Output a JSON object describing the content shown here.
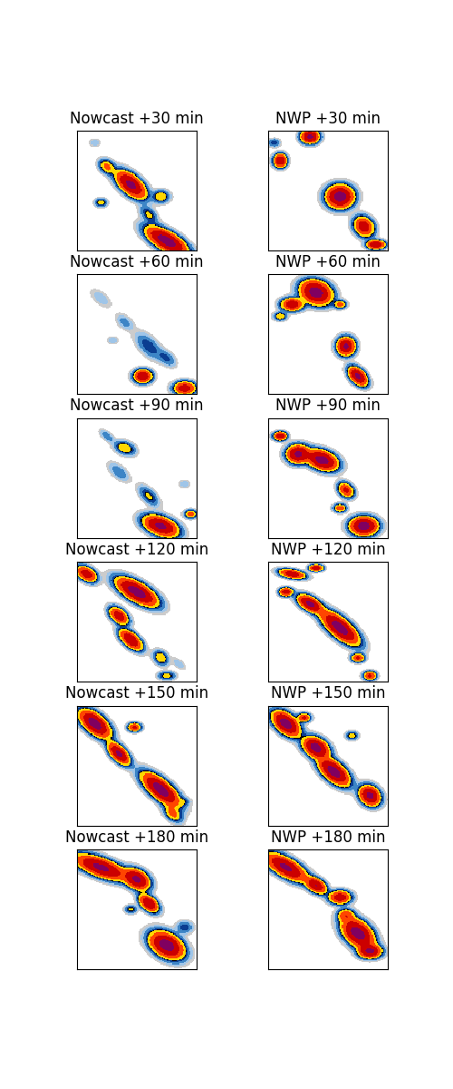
{
  "chart_data": {
    "type": "heatmap",
    "tick_labels": false,
    "xlim": [
      0,
      100
    ],
    "ylim": [
      0,
      100
    ],
    "levels": [
      0.2,
      0.5,
      1,
      2,
      3,
      3.4,
      6,
      12,
      25,
      200
    ],
    "colors": [
      "#cccccc",
      "#9fc5e8",
      "#3d85c6",
      "#0b3d91",
      "#000000",
      "#ffd700",
      "#ff4500",
      "#cc0000",
      "#800060"
    ],
    "panels": [
      {
        "title": "Nowcast +30 min",
        "cells": [
          {
            "x": 25,
            "y": 70,
            "sx": 4,
            "sy": 3,
            "angle": -40,
            "peak": 8
          },
          {
            "x": 45,
            "y": 55,
            "sx": 8,
            "sy": 4,
            "angle": -40,
            "peak": 30
          },
          {
            "x": 70,
            "y": 45,
            "sx": 4,
            "sy": 3,
            "angle": 0,
            "peak": 6
          },
          {
            "x": 75,
            "y": 8,
            "sx": 10,
            "sy": 4,
            "angle": -30,
            "peak": 35
          },
          {
            "x": 20,
            "y": 40,
            "sx": 3,
            "sy": 2,
            "angle": 0,
            "peak": 5
          },
          {
            "x": 60,
            "y": 30,
            "sx": 5,
            "sy": 3,
            "angle": -45,
            "peak": 4
          },
          {
            "x": 15,
            "y": 90,
            "sx": 3,
            "sy": 2,
            "angle": 0,
            "peak": 1
          }
        ]
      },
      {
        "title": "NWP +30 min",
        "cells": [
          {
            "x": 35,
            "y": 95,
            "sx": 4,
            "sy": 3,
            "angle": 0,
            "peak": 30
          },
          {
            "x": 10,
            "y": 75,
            "sx": 3,
            "sy": 3,
            "angle": 0,
            "peak": 25
          },
          {
            "x": 60,
            "y": 45,
            "sx": 6,
            "sy": 5,
            "angle": 0,
            "peak": 35
          },
          {
            "x": 80,
            "y": 20,
            "sx": 5,
            "sy": 4,
            "angle": -45,
            "peak": 20
          },
          {
            "x": 90,
            "y": 5,
            "sx": 4,
            "sy": 2,
            "angle": 0,
            "peak": 25
          },
          {
            "x": 5,
            "y": 90,
            "sx": 3,
            "sy": 2,
            "angle": 0,
            "peak": 3
          }
        ]
      },
      {
        "title": "Nowcast +60 min",
        "cells": [
          {
            "x": 20,
            "y": 80,
            "sx": 6,
            "sy": 3,
            "angle": -40,
            "peak": 1
          },
          {
            "x": 40,
            "y": 60,
            "sx": 5,
            "sy": 3,
            "angle": -40,
            "peak": 1.5
          },
          {
            "x": 60,
            "y": 40,
            "sx": 8,
            "sy": 4,
            "angle": -45,
            "peak": 3
          },
          {
            "x": 55,
            "y": 15,
            "sx": 4,
            "sy": 3,
            "angle": 0,
            "peak": 25
          },
          {
            "x": 90,
            "y": 5,
            "sx": 5,
            "sy": 3,
            "angle": 0,
            "peak": 20
          },
          {
            "x": 75,
            "y": 30,
            "sx": 5,
            "sy": 3,
            "angle": -40,
            "peak": 2.5
          },
          {
            "x": 30,
            "y": 45,
            "sx": 3,
            "sy": 2,
            "angle": 0,
            "peak": 1
          }
        ]
      },
      {
        "title": "NWP +60 min",
        "cells": [
          {
            "x": 40,
            "y": 85,
            "sx": 7,
            "sy": 5,
            "angle": -20,
            "peak": 35
          },
          {
            "x": 20,
            "y": 75,
            "sx": 5,
            "sy": 3,
            "angle": 0,
            "peak": 20
          },
          {
            "x": 60,
            "y": 75,
            "sx": 3,
            "sy": 2,
            "angle": 0,
            "peak": 8
          },
          {
            "x": 65,
            "y": 40,
            "sx": 4,
            "sy": 4,
            "angle": 0,
            "peak": 30
          },
          {
            "x": 75,
            "y": 15,
            "sx": 5,
            "sy": 3,
            "angle": -45,
            "peak": 30
          },
          {
            "x": 10,
            "y": 65,
            "sx": 3,
            "sy": 2,
            "angle": 0,
            "peak": 6
          }
        ]
      },
      {
        "title": "Nowcast +90 min",
        "cells": [
          {
            "x": 25,
            "y": 85,
            "sx": 4,
            "sy": 2,
            "angle": -40,
            "peak": 2
          },
          {
            "x": 40,
            "y": 75,
            "sx": 5,
            "sy": 3,
            "angle": -20,
            "peak": 6
          },
          {
            "x": 35,
            "y": 55,
            "sx": 6,
            "sy": 3,
            "angle": -40,
            "peak": 2
          },
          {
            "x": 60,
            "y": 35,
            "sx": 6,
            "sy": 3,
            "angle": -45,
            "peak": 4
          },
          {
            "x": 70,
            "y": 10,
            "sx": 8,
            "sy": 4,
            "angle": -20,
            "peak": 30
          },
          {
            "x": 95,
            "y": 20,
            "sx": 3,
            "sy": 2,
            "angle": 0,
            "peak": 8
          },
          {
            "x": 90,
            "y": 45,
            "sx": 3,
            "sy": 2,
            "angle": 0,
            "peak": 1
          }
        ]
      },
      {
        "title": "NWP +90 min",
        "cells": [
          {
            "x": 45,
            "y": 65,
            "sx": 7,
            "sy": 4,
            "angle": -20,
            "peak": 35
          },
          {
            "x": 25,
            "y": 70,
            "sx": 5,
            "sy": 4,
            "angle": 0,
            "peak": 30
          },
          {
            "x": 10,
            "y": 85,
            "sx": 3,
            "sy": 2,
            "angle": 0,
            "peak": 20
          },
          {
            "x": 65,
            "y": 40,
            "sx": 4,
            "sy": 3,
            "angle": -40,
            "peak": 15
          },
          {
            "x": 80,
            "y": 10,
            "sx": 6,
            "sy": 4,
            "angle": 0,
            "peak": 35
          },
          {
            "x": 60,
            "y": 25,
            "sx": 3,
            "sy": 2,
            "angle": 0,
            "peak": 10
          }
        ]
      },
      {
        "title": "Nowcast +120 min",
        "cells": [
          {
            "x": 8,
            "y": 90,
            "sx": 5,
            "sy": 3,
            "angle": -30,
            "peak": 20
          },
          {
            "x": 50,
            "y": 75,
            "sx": 10,
            "sy": 4,
            "angle": -30,
            "peak": 35
          },
          {
            "x": 35,
            "y": 55,
            "sx": 5,
            "sy": 3,
            "angle": -40,
            "peak": 20
          },
          {
            "x": 45,
            "y": 35,
            "sx": 6,
            "sy": 3,
            "angle": -40,
            "peak": 25
          },
          {
            "x": 70,
            "y": 20,
            "sx": 4,
            "sy": 3,
            "angle": -40,
            "peak": 6
          },
          {
            "x": 75,
            "y": 5,
            "sx": 4,
            "sy": 2,
            "angle": 0,
            "peak": 5
          },
          {
            "x": 85,
            "y": 15,
            "sx": 4,
            "sy": 2,
            "angle": -40,
            "peak": 1
          }
        ]
      },
      {
        "title": "NWP +120 min",
        "cells": [
          {
            "x": 35,
            "y": 65,
            "sx": 6,
            "sy": 3,
            "angle": -30,
            "peak": 30
          },
          {
            "x": 60,
            "y": 45,
            "sx": 10,
            "sy": 4,
            "angle": -40,
            "peak": 35
          },
          {
            "x": 20,
            "y": 90,
            "sx": 6,
            "sy": 2,
            "angle": -10,
            "peak": 20
          },
          {
            "x": 40,
            "y": 95,
            "sx": 3,
            "sy": 1.5,
            "angle": 0,
            "peak": 25
          },
          {
            "x": 75,
            "y": 20,
            "sx": 3,
            "sy": 2,
            "angle": 0,
            "peak": 15
          },
          {
            "x": 85,
            "y": 5,
            "sx": 3,
            "sy": 2,
            "angle": 0,
            "peak": 15
          },
          {
            "x": 15,
            "y": 75,
            "sx": 3,
            "sy": 2,
            "angle": 0,
            "peak": 20
          }
        ]
      },
      {
        "title": "Nowcast +150 min",
        "cells": [
          {
            "x": 15,
            "y": 85,
            "sx": 8,
            "sy": 4,
            "angle": -40,
            "peak": 35
          },
          {
            "x": 35,
            "y": 60,
            "sx": 6,
            "sy": 3,
            "angle": -45,
            "peak": 30
          },
          {
            "x": 48,
            "y": 82,
            "sx": 3,
            "sy": 2,
            "angle": 0,
            "peak": 15
          },
          {
            "x": 70,
            "y": 30,
            "sx": 10,
            "sy": 4,
            "angle": -40,
            "peak": 35
          },
          {
            "x": 80,
            "y": 10,
            "sx": 5,
            "sy": 3,
            "angle": -40,
            "peak": 8
          },
          {
            "x": 90,
            "y": 20,
            "sx": 3,
            "sy": 2,
            "angle": 0,
            "peak": 2
          }
        ]
      },
      {
        "title": "NWP +150 min",
        "cells": [
          {
            "x": 15,
            "y": 85,
            "sx": 7,
            "sy": 4,
            "angle": -40,
            "peak": 35
          },
          {
            "x": 40,
            "y": 65,
            "sx": 6,
            "sy": 4,
            "angle": -30,
            "peak": 35
          },
          {
            "x": 55,
            "y": 45,
            "sx": 8,
            "sy": 4,
            "angle": -40,
            "peak": 35
          },
          {
            "x": 85,
            "y": 25,
            "sx": 5,
            "sy": 4,
            "angle": -40,
            "peak": 30
          },
          {
            "x": 30,
            "y": 90,
            "sx": 3,
            "sy": 2,
            "angle": 0,
            "peak": 15
          },
          {
            "x": 70,
            "y": 75,
            "sx": 3,
            "sy": 2,
            "angle": 0,
            "peak": 5
          }
        ]
      },
      {
        "title": "Nowcast +180 min",
        "cells": [
          {
            "x": 20,
            "y": 85,
            "sx": 12,
            "sy": 4,
            "angle": -20,
            "peak": 30
          },
          {
            "x": 50,
            "y": 75,
            "sx": 6,
            "sy": 4,
            "angle": -30,
            "peak": 30
          },
          {
            "x": 60,
            "y": 55,
            "sx": 5,
            "sy": 3,
            "angle": -40,
            "peak": 25
          },
          {
            "x": 75,
            "y": 20,
            "sx": 8,
            "sy": 5,
            "angle": -30,
            "peak": 35
          },
          {
            "x": 90,
            "y": 35,
            "sx": 4,
            "sy": 3,
            "angle": 0,
            "peak": 3
          },
          {
            "x": 45,
            "y": 50,
            "sx": 3,
            "sy": 2,
            "angle": 0,
            "peak": 4
          }
        ]
      },
      {
        "title": "NWP +180 min",
        "cells": [
          {
            "x": 15,
            "y": 85,
            "sx": 10,
            "sy": 4,
            "angle": -30,
            "peak": 30
          },
          {
            "x": 40,
            "y": 70,
            "sx": 5,
            "sy": 3,
            "angle": -30,
            "peak": 25
          },
          {
            "x": 60,
            "y": 60,
            "sx": 5,
            "sy": 3,
            "angle": 0,
            "peak": 20
          },
          {
            "x": 75,
            "y": 30,
            "sx": 8,
            "sy": 5,
            "angle": -40,
            "peak": 35
          },
          {
            "x": 65,
            "y": 45,
            "sx": 4,
            "sy": 3,
            "angle": 0,
            "peak": 10
          },
          {
            "x": 85,
            "y": 15,
            "sx": 5,
            "sy": 3,
            "angle": 0,
            "peak": 30
          }
        ]
      }
    ]
  }
}
